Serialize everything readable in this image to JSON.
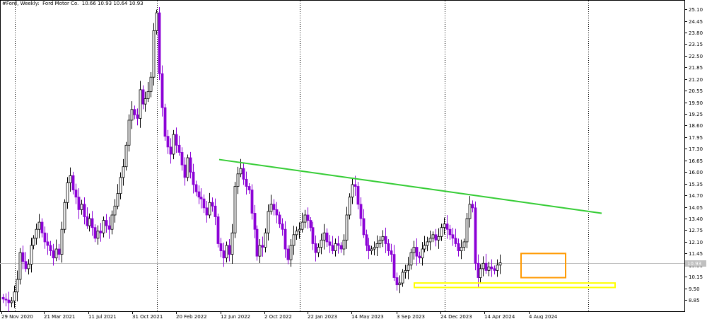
{
  "header": {
    "text": "#Ford, Weekly:  Ford Motor Co.  10.66 10.93 10.64 10.93"
  },
  "colors": {
    "background": "#ffffff",
    "grid": "#000000",
    "bull_candle_fill": "#ffffff",
    "bull_candle_border": "#000000",
    "bear_candle_fill": "#8b00d6",
    "bear_candle_border": "#8b00d6",
    "trendline": "#33cc33",
    "orange_box": "#ff9900",
    "yellow_box": "#ffff00",
    "current_price_line": "#c0c0c0",
    "current_price_tag_bg": "#c0c0c0"
  },
  "chart_data": {
    "type": "candlestick",
    "title": "#Ford, Weekly: Ford Motor Co.",
    "symbol": "#Ford",
    "timeframe": "Weekly",
    "last_bar": {
      "open": 10.66,
      "high": 10.93,
      "low": 10.64,
      "close": 10.93
    },
    "current_price_label": "10.93",
    "ylim": [
      8.5,
      25.3
    ],
    "yticks": [
      "25.10",
      "24.45",
      "23.80",
      "23.15",
      "22.50",
      "21.85",
      "21.20",
      "20.55",
      "19.90",
      "19.25",
      "18.60",
      "17.95",
      "17.30",
      "16.65",
      "16.00",
      "15.35",
      "14.70",
      "14.05",
      "13.40",
      "12.75",
      "12.10",
      "11.45",
      "10.80",
      "10.15",
      "9.50",
      "8.85"
    ],
    "xlabels": [
      "29 Nov 2020",
      "21 Mar 2021",
      "11 Jul 2021",
      "31 Oct 2021",
      "20 Feb 2022",
      "12 Jun 2022",
      "2 Oct 2022",
      "22 Jan 2023",
      "14 May 2023",
      "3 Sep 2023",
      "24 Dec 2023",
      "14 Apr 2024",
      "4 Aug 2024"
    ],
    "xlabel_bar_index": [
      0,
      16,
      32,
      48,
      64,
      80,
      96,
      112,
      128,
      144,
      160,
      176,
      192
    ],
    "vertical_separator_bars": [
      5,
      57,
      109,
      161,
      213
    ],
    "close": [
      8.9,
      8.85,
      8.7,
      8.8,
      9.3,
      10.0,
      11.5,
      11.0,
      10.6,
      10.85,
      11.9,
      12.3,
      12.8,
      13.2,
      12.6,
      12.1,
      11.9,
      11.6,
      11.2,
      11.7,
      11.4,
      12.8,
      14.3,
      15.4,
      15.8,
      15.0,
      14.6,
      13.9,
      14.2,
      13.5,
      13.0,
      13.4,
      12.9,
      12.3,
      12.7,
      12.6,
      13.3,
      13.0,
      12.8,
      13.6,
      14.1,
      14.8,
      15.7,
      16.3,
      17.5,
      18.9,
      19.5,
      19.2,
      19.0,
      20.6,
      19.8,
      20.1,
      20.5,
      21.3,
      23.9,
      24.9,
      21.5,
      19.6,
      18.0,
      17.4,
      17.0,
      18.1,
      17.5,
      17.1,
      16.4,
      15.7,
      16.8,
      16.0,
      15.3,
      14.9,
      14.6,
      14.5,
      14.0,
      13.6,
      14.3,
      14.1,
      13.5,
      12.0,
      11.6,
      11.2,
      11.9,
      11.4,
      12.6,
      15.2,
      15.9,
      16.2,
      15.6,
      15.2,
      15.0,
      13.7,
      12.8,
      11.3,
      11.9,
      11.8,
      12.6,
      13.8,
      14.2,
      13.9,
      13.6,
      13.1,
      12.8,
      11.7,
      11.1,
      11.9,
      12.5,
      12.7,
      12.8,
      13.2,
      13.6,
      13.3,
      12.9,
      12.0,
      11.5,
      11.8,
      12.2,
      12.6,
      12.1,
      11.9,
      11.6,
      12.0,
      11.9,
      11.7,
      12.2,
      13.6,
      14.6,
      15.3,
      15.2,
      14.2,
      13.4,
      12.5,
      11.9,
      11.6,
      11.7,
      11.8,
      12.0,
      12.2,
      12.4,
      12.0,
      11.6,
      11.4,
      10.1,
      9.7,
      9.8,
      10.4,
      10.5,
      10.8,
      11.5,
      11.8,
      11.3,
      11.2,
      11.7,
      11.9,
      12.1,
      12.3,
      12.5,
      12.2,
      12.4,
      12.9,
      13.1,
      12.8,
      12.5,
      12.3,
      12.0,
      11.6,
      11.8,
      12.1,
      13.4,
      14.2,
      14.0,
      10.9,
      10.1,
      10.6,
      10.9,
      10.5,
      10.7,
      10.6,
      10.5,
      10.8,
      10.93
    ],
    "trendline": {
      "from": {
        "bar": 88,
        "price": 16.7
      },
      "to": {
        "bar": 219,
        "price": 13.7
      }
    },
    "box_orange": {
      "bar_from": 199,
      "bar_to": 215,
      "price_top": 11.45,
      "price_bottom": 10.1
    },
    "box_yellow": {
      "bar_from": 154,
      "bar_to": 228,
      "price_top": 9.8,
      "price_bottom": 9.55
    }
  }
}
